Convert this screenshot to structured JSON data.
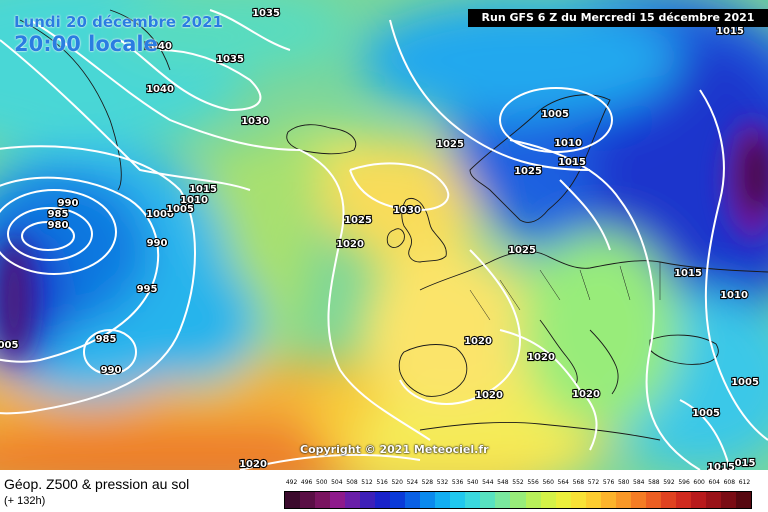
{
  "header": {
    "date": "Lundi 20 décembre 2021",
    "local_time": "20:00 locale",
    "run": "Run GFS 6 Z du Mercredi 15 décembre 2021"
  },
  "copyright": "Copyright © 2021 Meteociel.fr",
  "footer": {
    "product": "Géop. Z500 & pression au sol",
    "lead": "(+ 132h)"
  },
  "legend": {
    "values": [
      "492",
      "496",
      "500",
      "504",
      "508",
      "512",
      "516",
      "520",
      "524",
      "528",
      "532",
      "536",
      "540",
      "544",
      "548",
      "552",
      "556",
      "560",
      "564",
      "568",
      "572",
      "576",
      "580",
      "584",
      "588",
      "592",
      "596",
      "600",
      "604",
      "608",
      "612"
    ],
    "colors": [
      "#3b0a2c",
      "#5a0e45",
      "#7a1460",
      "#8f1a8c",
      "#6a1ea8",
      "#3d1fb8",
      "#1a22c9",
      "#0a3ad8",
      "#0a60e4",
      "#0a8aee",
      "#12aef2",
      "#20c8ef",
      "#3ad8de",
      "#58e2c0",
      "#7ae89e",
      "#98ec7a",
      "#b8f05a",
      "#d4f248",
      "#ecf03c",
      "#f8e236",
      "#fccd30",
      "#fcb42c",
      "#f99828",
      "#f47c24",
      "#ec5e22",
      "#e04220",
      "#d02a1e",
      "#b81a1c",
      "#9a1218",
      "#7a0c14",
      "#560810"
    ]
  },
  "map": {
    "isobar_labels": [
      {
        "text": "1035"
      },
      {
        "text": "1035"
      },
      {
        "text": "1040"
      },
      {
        "text": "1040"
      },
      {
        "text": "1030"
      },
      {
        "text": "1025"
      },
      {
        "text": "990"
      },
      {
        "text": "985"
      },
      {
        "text": "980"
      },
      {
        "text": "1000"
      },
      {
        "text": "1005"
      },
      {
        "text": "1010"
      },
      {
        "text": "1015"
      },
      {
        "text": "990"
      },
      {
        "text": "995"
      },
      {
        "text": "985"
      },
      {
        "text": "990"
      },
      {
        "text": "005"
      },
      {
        "text": "1025"
      },
      {
        "text": "1020"
      },
      {
        "text": "1030"
      },
      {
        "text": "1025"
      },
      {
        "text": "1005"
      },
      {
        "text": "1010"
      },
      {
        "text": "1015"
      },
      {
        "text": "1025"
      },
      {
        "text": "1015"
      },
      {
        "text": "1020"
      },
      {
        "text": "1020"
      },
      {
        "text": "1020"
      },
      {
        "text": "1020"
      },
      {
        "text": "1015"
      },
      {
        "text": "1010"
      },
      {
        "text": "1005"
      },
      {
        "text": "1005"
      },
      {
        "text": "1015"
      },
      {
        "text": "015"
      },
      {
        "text": "1020"
      }
    ]
  }
}
